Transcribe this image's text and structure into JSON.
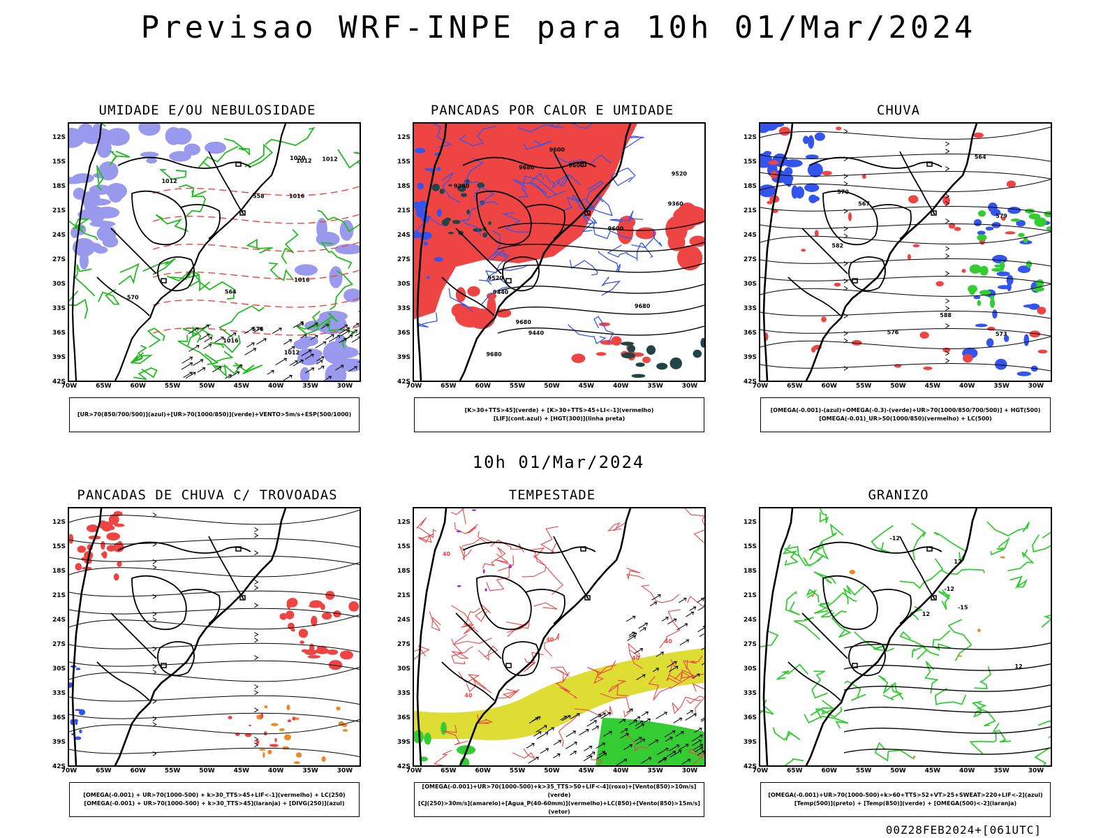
{
  "header": {
    "title": "Previsao WRF-INPE  para 10h 01/Mar/2024",
    "middle_title": "10h 01/Mar/2024",
    "run_stamp": "00Z28FEB2024+[061UTC]"
  },
  "axes": {
    "lat_labels": [
      "12S",
      "15S",
      "18S",
      "21S",
      "24S",
      "27S",
      "30S",
      "33S",
      "36S",
      "39S",
      "42S"
    ],
    "lon_labels": [
      "70W",
      "65W",
      "60W",
      "55W",
      "50W",
      "45W",
      "40W",
      "35W",
      "30W"
    ]
  },
  "colors": {
    "coast": "#000000",
    "humidity_blue": "#9999ee",
    "humidity_green": "#22bb22",
    "dashed_red": "#ee4444",
    "red_fill": "#ee4444",
    "blue_line": "#3355ee",
    "dark_teal": "#224444",
    "yellow_fill": "#dddd33",
    "green_fill": "#33cc33",
    "orange": "#ee8822"
  },
  "panels": [
    {
      "id": "umidade",
      "title": "UMIDADE E/OU NEBULOSIDADE",
      "legend": [
        "[UR>70(850/700/500)](azul)+[UR>70(1000/850)](verde)+VENTO>5m/s+ESP(500/1000)"
      ],
      "contour_labels": [
        "1012",
        "1012",
        "1012",
        "1016",
        "1016",
        "1016",
        "1020",
        "1012",
        "576",
        "570",
        "564",
        "558"
      ]
    },
    {
      "id": "pancadas_calor",
      "title": "PANCADAS POR CALOR E UMIDADE",
      "legend": [
        "[K>30+TTS>45](verde) + [K>30+TTS>45+LI<-1](vermelho)",
        "[LIF](cont.azul) + [HGT(300)](linha preta)"
      ],
      "contour_labels": [
        "9680",
        "9680",
        "9680",
        "9680",
        "9600",
        "9600",
        "9600",
        "9520",
        "9520",
        "9440",
        "9440",
        "9360",
        "9280"
      ]
    },
    {
      "id": "chuva",
      "title": "CHUVA",
      "legend": [
        "[OMEGA(-0.001)-(azul)+OMEGA(-0.3)-(verde)+UR>70(1000/850/700/500)] + HGT(500)",
        "[OMEGA(-0.01)_UR>50(1000/850)(vermelho) + LC(500)"
      ],
      "contour_labels": [
        "588",
        "582",
        "579",
        "576",
        "573",
        "570",
        "567",
        "564"
      ]
    },
    {
      "id": "trovoadas",
      "title": "PANCADAS DE CHUVA C/ TROVOADAS",
      "legend": [
        "[OMEGA(-0.001) + UR>70(1000-500) + k>30_TTS>45+LIF<-1](vermelho) + LC(250)",
        "[OMEGA(-0.001) + UR>70(1000-500) + k>30_TTS>45](laranja) + [DIVG(250)](azul)"
      ],
      "contour_labels": []
    },
    {
      "id": "tempestade",
      "title": "TEMPESTADE",
      "legend": [
        "[OMEGA(-0.001)+UR>70(1000-500)+k>35_TTS>50+LIF<-4](roxo)+[Vento(850)>10m/s](verde)",
        "[CJ(250)>30m/s](amarelo)+[Agua_P(40-60mm)](vermelho)+LC(850)+[Vento(850)>15m/s](vetor)"
      ],
      "contour_labels": [
        "40",
        "40",
        "40",
        "40",
        "40"
      ]
    },
    {
      "id": "granizo",
      "title": "GRANIZO",
      "legend": [
        "[OMEGA(-0.001)+UR>70(1000-500)+k>60+TTS>52+VT>25+SWEAT>220+LIF<-2](azul)",
        "[Temp(500)](preto) + [Temp(850)](verde) + [OMEGA(500)<-2](laranja)"
      ],
      "contour_labels": [
        "-15",
        "-12",
        "-12",
        "12",
        "12",
        "12"
      ]
    }
  ]
}
